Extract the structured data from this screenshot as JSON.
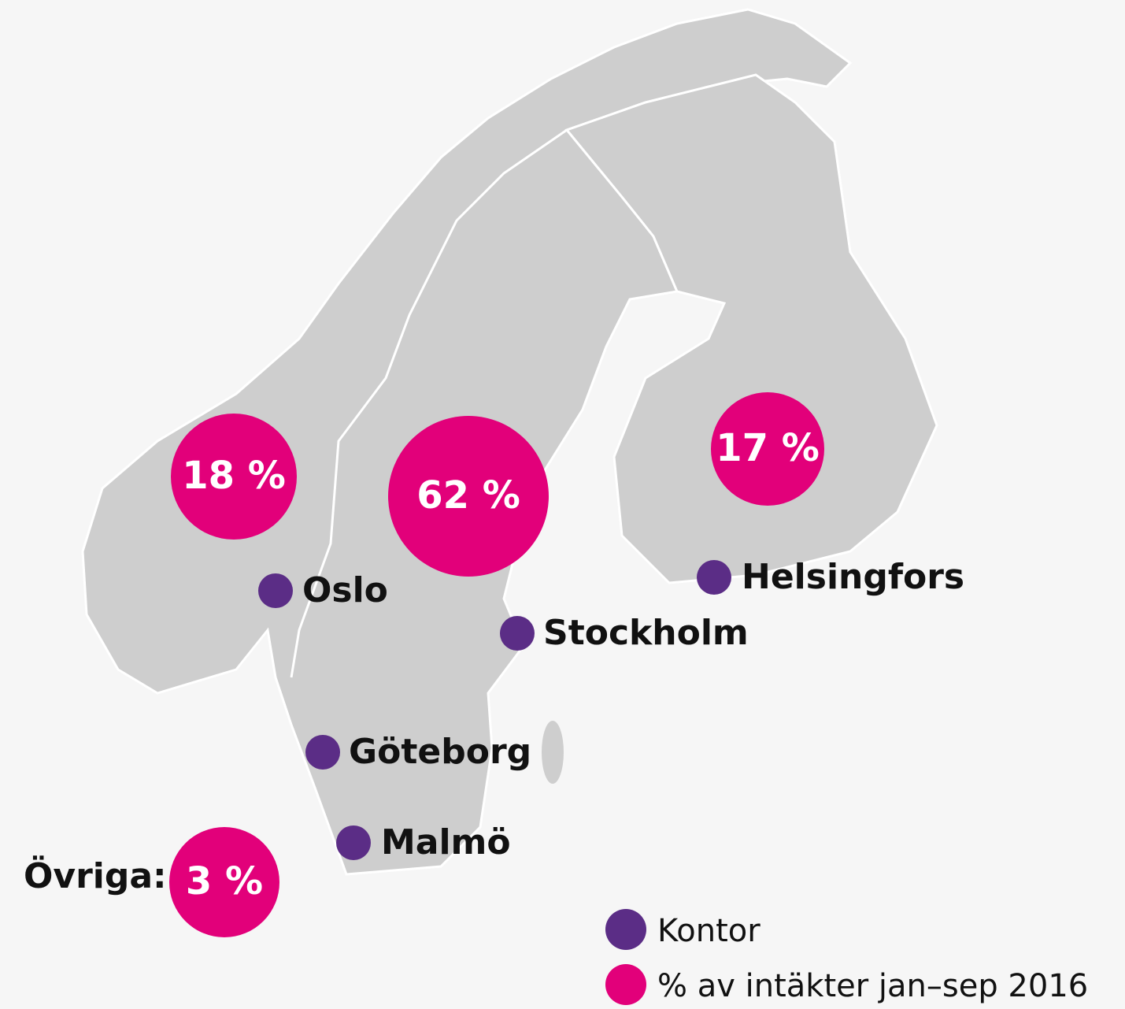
{
  "regions": [
    {
      "label": "18 %"
    },
    {
      "label": "62 %"
    },
    {
      "label": "17 %"
    }
  ],
  "other": {
    "label": "Övriga:",
    "value_label": "3 %"
  },
  "cities": [
    "Oslo",
    "Stockholm",
    "Helsingfors",
    "Göteborg",
    "Malmö"
  ],
  "legend": {
    "office": "Kontor",
    "revenue": "% av intäkter jan–sep 2016"
  }
}
